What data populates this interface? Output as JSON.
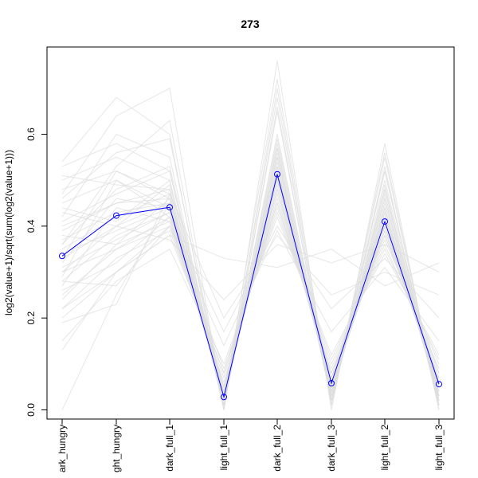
{
  "chart_data": {
    "type": "line",
    "title": "273",
    "xlabel": "",
    "ylabel": "log2(value+1)/sqrt(sum(log2(value+1)))",
    "categories": [
      "dark_hungry",
      "light_hungry",
      "dark_full_1",
      "light_full_1",
      "dark_full_2",
      "dark_full_3",
      "light_full_2",
      "light_full_3"
    ],
    "category_labels_shown": [
      "ark_hungry",
      "ght_hungry",
      "dark_full_1",
      "light_full_1",
      "dark_full_2",
      "dark_full_3",
      "light_full_2",
      "light_full_3"
    ],
    "ylim": [
      -0.02,
      0.79
    ],
    "y_ticks": [
      0.0,
      0.2,
      0.4,
      0.6
    ],
    "y_tick_labels": [
      "0.0",
      "0.2",
      "0.4",
      "0.6"
    ],
    "grid": false,
    "highlight_color": "#0000ff",
    "background_color": "#dddddd",
    "series": [
      {
        "values": [
          0.335,
          0.423,
          0.441,
          0.028,
          0.513,
          0.058,
          0.41,
          0.056
        ],
        "highlight": true
      }
    ],
    "background_series": [
      [
        0.3,
        0.4,
        0.45,
        0.05,
        0.5,
        0.07,
        0.42,
        0.06
      ],
      [
        0.28,
        0.38,
        0.43,
        0.04,
        0.48,
        0.05,
        0.4,
        0.05
      ],
      [
        0.4,
        0.45,
        0.48,
        0.02,
        0.55,
        0.03,
        0.45,
        0.04
      ],
      [
        0.25,
        0.35,
        0.4,
        0.06,
        0.46,
        0.08,
        0.38,
        0.07
      ],
      [
        0.45,
        0.5,
        0.42,
        0.03,
        0.52,
        0.04,
        0.43,
        0.03
      ],
      [
        0.35,
        0.42,
        0.47,
        0.01,
        0.57,
        0.02,
        0.47,
        0.02
      ],
      [
        0.2,
        0.3,
        0.38,
        0.08,
        0.44,
        0.1,
        0.36,
        0.09
      ],
      [
        0.5,
        0.55,
        0.5,
        0.02,
        0.6,
        0.03,
        0.5,
        0.02
      ],
      [
        0.32,
        0.46,
        0.44,
        0.04,
        0.5,
        0.06,
        0.41,
        0.06
      ],
      [
        0.38,
        0.36,
        0.46,
        0.02,
        0.53,
        0.04,
        0.44,
        0.03
      ],
      [
        0.15,
        0.28,
        0.35,
        0.1,
        0.42,
        0.12,
        0.34,
        0.12
      ],
      [
        0.42,
        0.6,
        0.55,
        0.01,
        0.65,
        0.02,
        0.52,
        0.01
      ],
      [
        0.33,
        0.4,
        0.49,
        0.03,
        0.49,
        0.05,
        0.39,
        0.05
      ],
      [
        0.27,
        0.44,
        0.41,
        0.05,
        0.47,
        0.07,
        0.42,
        0.08
      ],
      [
        0.36,
        0.48,
        0.53,
        0.02,
        0.58,
        0.03,
        0.46,
        0.03
      ],
      [
        0.22,
        0.33,
        0.39,
        0.07,
        0.45,
        0.09,
        0.37,
        0.1
      ],
      [
        0.48,
        0.52,
        0.46,
        0.02,
        0.54,
        0.03,
        0.44,
        0.02
      ],
      [
        0.31,
        0.37,
        0.43,
        0.04,
        0.51,
        0.06,
        0.4,
        0.06
      ],
      [
        0.44,
        0.41,
        0.5,
        0.01,
        0.56,
        0.02,
        0.48,
        0.02
      ],
      [
        0.29,
        0.5,
        0.44,
        0.03,
        0.5,
        0.05,
        0.43,
        0.04
      ],
      [
        0.37,
        0.43,
        0.45,
        0.03,
        0.51,
        0.04,
        0.42,
        0.04
      ],
      [
        0.41,
        0.47,
        0.52,
        0.02,
        0.59,
        0.03,
        0.48,
        0.03
      ],
      [
        0.26,
        0.32,
        0.42,
        0.05,
        0.48,
        0.07,
        0.39,
        0.07
      ],
      [
        0.34,
        0.39,
        0.44,
        0.04,
        0.52,
        0.05,
        0.41,
        0.05
      ],
      [
        0.39,
        0.45,
        0.46,
        0.03,
        0.53,
        0.04,
        0.44,
        0.04
      ],
      [
        0.0,
        0.25,
        0.45,
        0.05,
        0.5,
        0.05,
        0.4,
        0.05
      ],
      [
        0.13,
        0.3,
        0.4,
        0.08,
        0.45,
        0.08,
        0.38,
        0.08
      ],
      [
        0.54,
        0.68,
        0.6,
        0.0,
        0.76,
        0.0,
        0.58,
        0.0
      ],
      [
        0.47,
        0.64,
        0.7,
        0.0,
        0.7,
        0.01,
        0.55,
        0.01
      ],
      [
        0.53,
        0.58,
        0.52,
        0.0,
        0.66,
        0.01,
        0.53,
        0.0
      ],
      [
        0.19,
        0.23,
        0.47,
        0.2,
        0.38,
        0.25,
        0.3,
        0.25
      ],
      [
        0.22,
        0.3,
        0.38,
        0.33,
        0.31,
        0.35,
        0.27,
        0.32
      ],
      [
        0.3,
        0.35,
        0.42,
        0.17,
        0.4,
        0.22,
        0.33,
        0.2
      ],
      [
        0.43,
        0.4,
        0.37,
        0.24,
        0.36,
        0.32,
        0.36,
        0.3
      ],
      [
        0.28,
        0.27,
        0.4,
        0.14,
        0.39,
        0.17,
        0.31,
        0.15
      ],
      [
        0.46,
        0.56,
        0.59,
        0.02,
        0.72,
        0.02,
        0.56,
        0.01
      ],
      [
        0.36,
        0.53,
        0.63,
        0.01,
        0.68,
        0.02,
        0.52,
        0.02
      ],
      [
        0.24,
        0.36,
        0.41,
        0.09,
        0.43,
        0.11,
        0.35,
        0.11
      ],
      [
        0.51,
        0.49,
        0.48,
        0.01,
        0.57,
        0.02,
        0.49,
        0.01
      ],
      [
        0.33,
        0.52,
        0.47,
        0.02,
        0.55,
        0.03,
        0.46,
        0.02
      ]
    ]
  }
}
